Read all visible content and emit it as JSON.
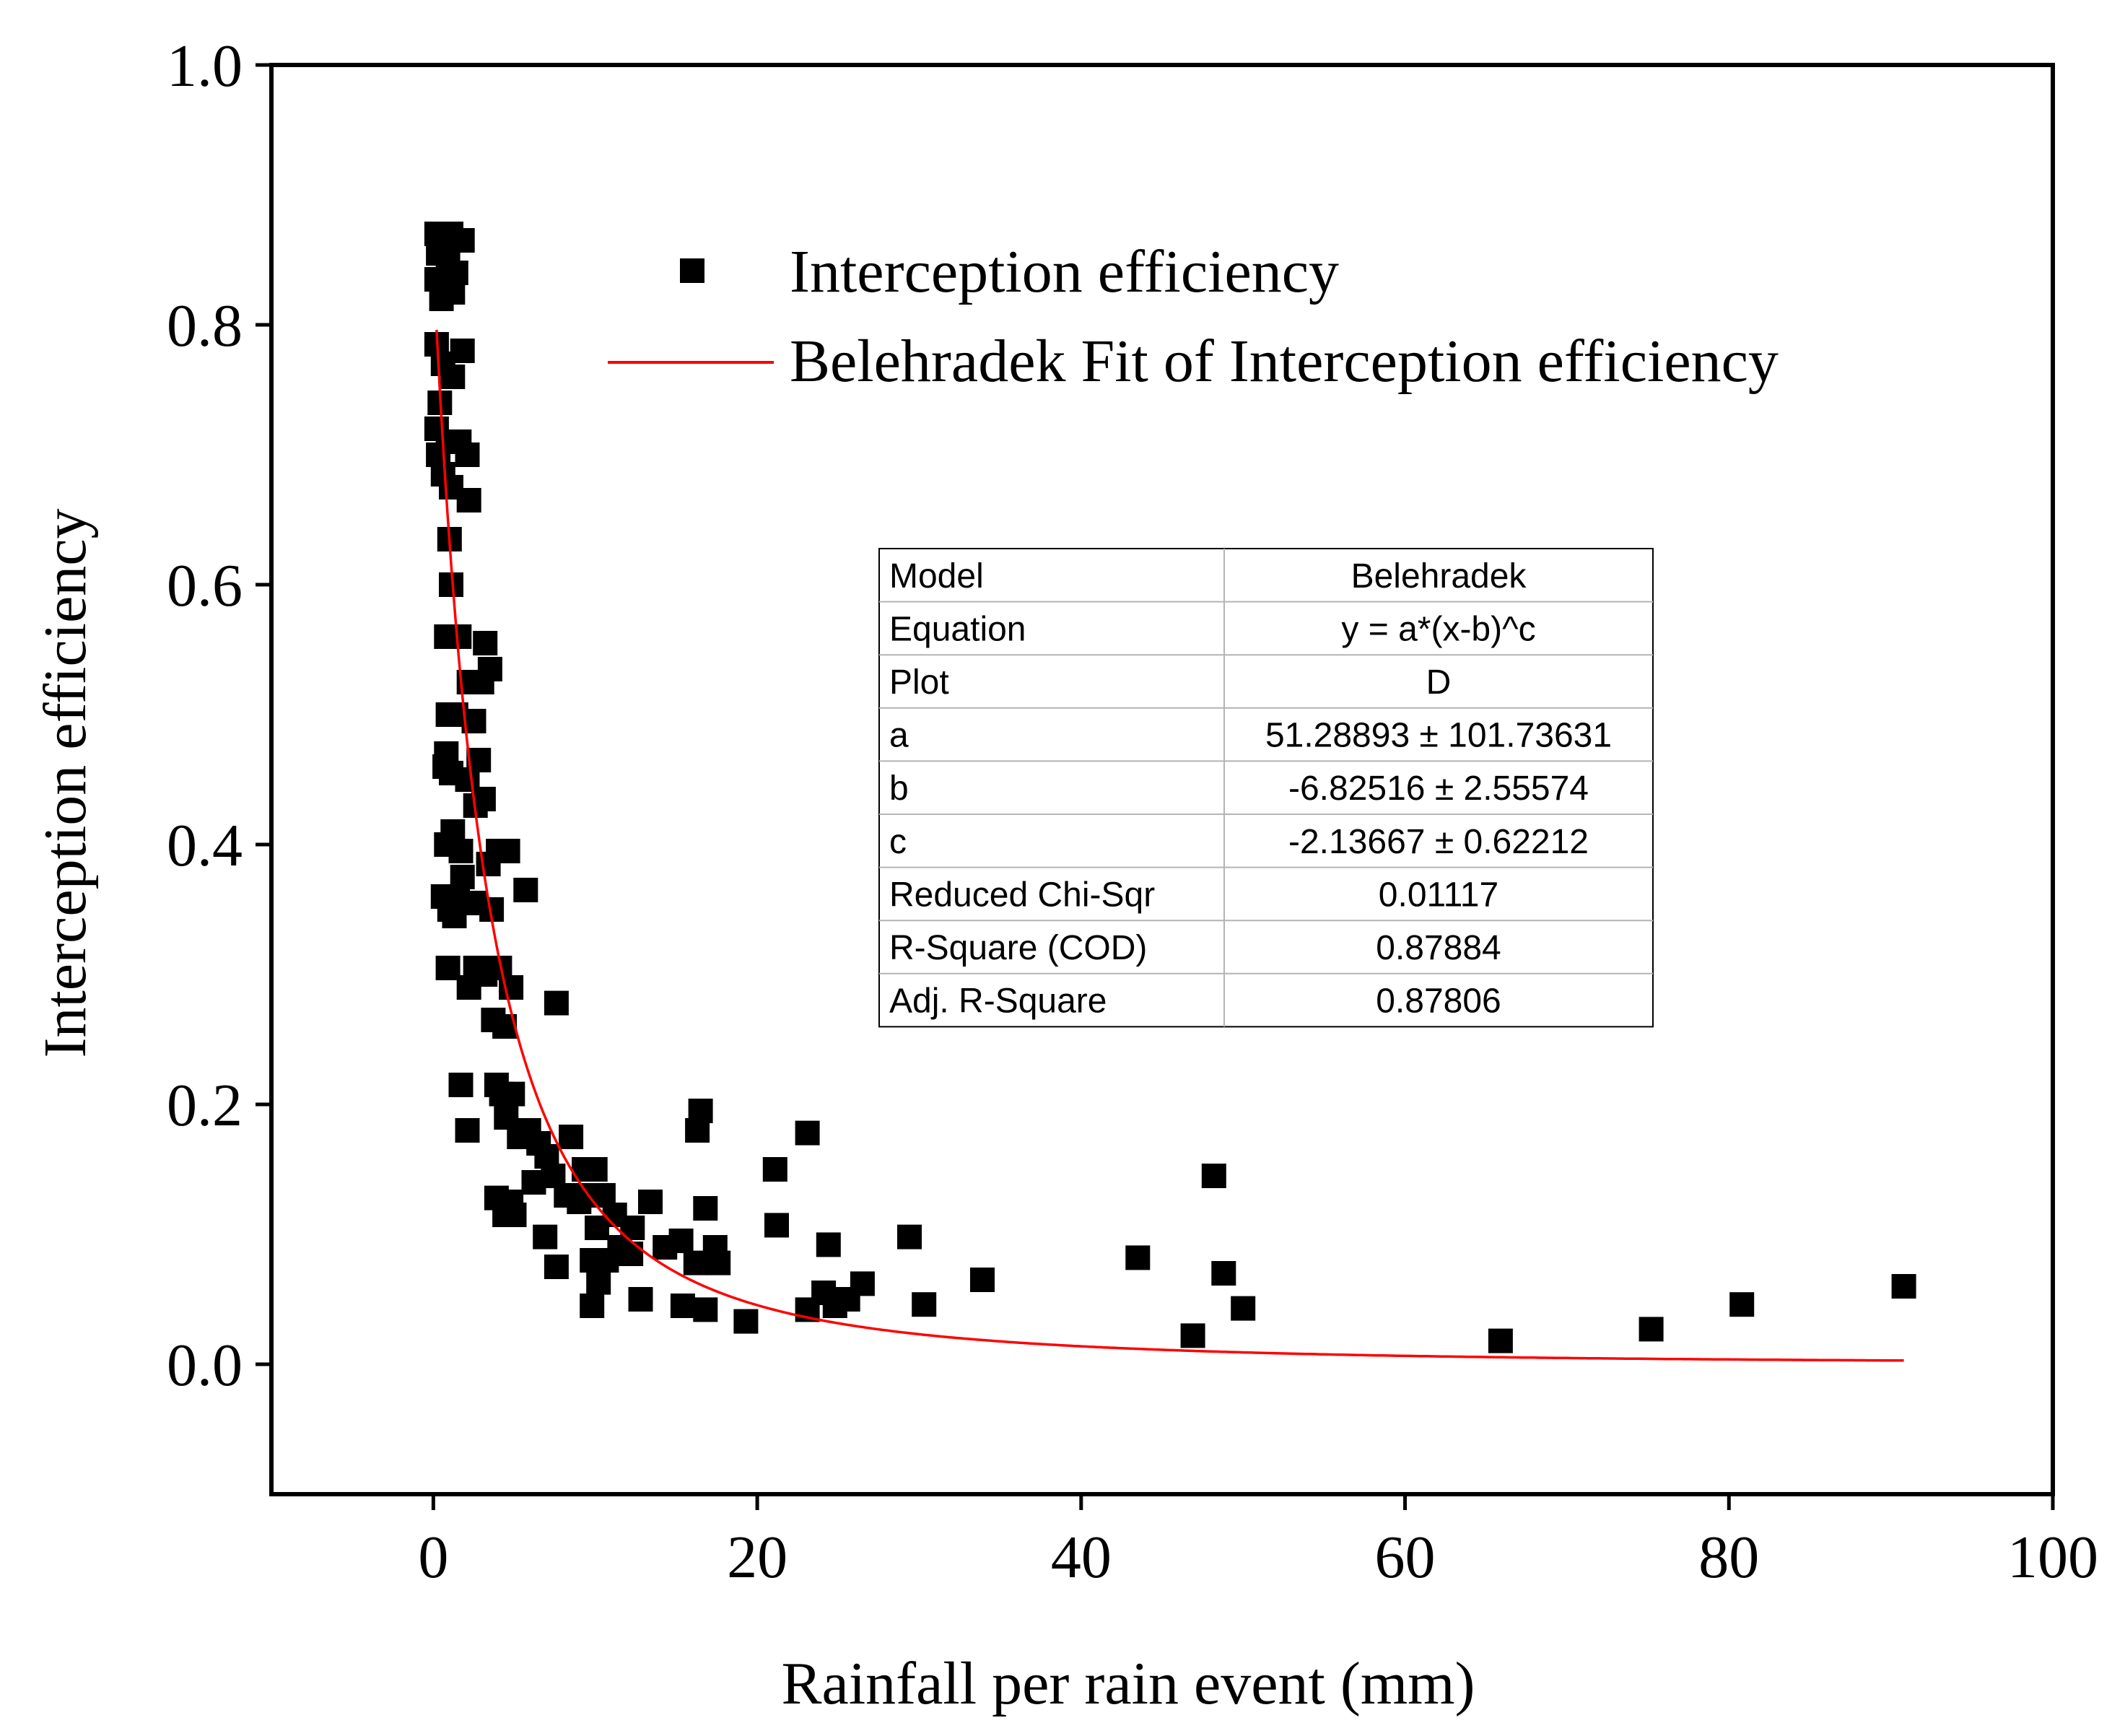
{
  "chart_data": {
    "type": "scatter",
    "xlabel": "Rainfall per rain event (mm)",
    "ylabel": "Interception efficiency",
    "xlim": [
      -10,
      100
    ],
    "ylim": [
      -0.1,
      1.0
    ],
    "xticks": [
      "0",
      "20",
      "40",
      "60",
      "80",
      "100"
    ],
    "yticks": [
      "0.0",
      "0.2",
      "0.4",
      "0.6",
      "0.8",
      "1.0"
    ],
    "legend": {
      "position": "top-right",
      "scatter_label": "Interception efficiency",
      "fit_label": "Belehradek Fit of Interception efficiency"
    },
    "colors": {
      "points": "#000000",
      "fit": "#ff0000"
    },
    "fit": {
      "model": "Belehradek",
      "a": 51.28893,
      "b": -6.82516,
      "c": -2.13667,
      "x_range": [
        0.2,
        90.8
      ]
    },
    "stats_table": {
      "rows": [
        [
          "Model",
          "Belehradek"
        ],
        [
          "Equation",
          "y = a*(x-b)^c"
        ],
        [
          "Plot",
          "D"
        ],
        [
          "a",
          "51.28893 ± 101.73631"
        ],
        [
          "b",
          "-6.82516 ± 2.55574"
        ],
        [
          "c",
          "-2.13667 ± 0.62212"
        ],
        [
          "Reduced Chi-Sqr",
          "0.01117"
        ],
        [
          "R-Square (COD)",
          "0.87884"
        ],
        [
          "Adj. R-Square",
          "0.87806"
        ]
      ]
    },
    "series": [
      {
        "name": "Interception efficiency",
        "points": [
          [
            0.2,
            0.87
          ],
          [
            0.6,
            0.87
          ],
          [
            1.1,
            0.87
          ],
          [
            1.8,
            0.865
          ],
          [
            0.3,
            0.855
          ],
          [
            0.9,
            0.85
          ],
          [
            1.4,
            0.84
          ],
          [
            0.2,
            0.835
          ],
          [
            0.7,
            0.83
          ],
          [
            1.2,
            0.825
          ],
          [
            0.5,
            0.82
          ],
          [
            0.2,
            0.785
          ],
          [
            1.8,
            0.78
          ],
          [
            0.6,
            0.77
          ],
          [
            1.2,
            0.76
          ],
          [
            0.4,
            0.74
          ],
          [
            0.2,
            0.72
          ],
          [
            0.9,
            0.71
          ],
          [
            1.6,
            0.71
          ],
          [
            2.1,
            0.7
          ],
          [
            0.3,
            0.7
          ],
          [
            0.6,
            0.685
          ],
          [
            1.1,
            0.675
          ],
          [
            2.2,
            0.665
          ],
          [
            1.0,
            0.635
          ],
          [
            1.1,
            0.6
          ],
          [
            0.8,
            0.56
          ],
          [
            1.6,
            0.56
          ],
          [
            3.2,
            0.555
          ],
          [
            3.5,
            0.535
          ],
          [
            3.0,
            0.525
          ],
          [
            2.2,
            0.525
          ],
          [
            0.9,
            0.5
          ],
          [
            1.4,
            0.5
          ],
          [
            2.5,
            0.495
          ],
          [
            0.8,
            0.47
          ],
          [
            2.8,
            0.465
          ],
          [
            1.1,
            0.455
          ],
          [
            0.7,
            0.46
          ],
          [
            2.1,
            0.45
          ],
          [
            3.1,
            0.435
          ],
          [
            2.6,
            0.43
          ],
          [
            1.2,
            0.41
          ],
          [
            0.8,
            0.4
          ],
          [
            1.7,
            0.395
          ],
          [
            4.0,
            0.395
          ],
          [
            4.6,
            0.395
          ],
          [
            3.4,
            0.385
          ],
          [
            1.8,
            0.375
          ],
          [
            0.6,
            0.36
          ],
          [
            1.5,
            0.36
          ],
          [
            2.6,
            0.355
          ],
          [
            1.0,
            0.35
          ],
          [
            1.3,
            0.345
          ],
          [
            3.6,
            0.35
          ],
          [
            5.7,
            0.365
          ],
          [
            0.9,
            0.305
          ],
          [
            2.6,
            0.305
          ],
          [
            3.2,
            0.3
          ],
          [
            4.1,
            0.305
          ],
          [
            2.2,
            0.29
          ],
          [
            4.8,
            0.29
          ],
          [
            7.6,
            0.278
          ],
          [
            4.4,
            0.26
          ],
          [
            3.7,
            0.265
          ],
          [
            1.7,
            0.215
          ],
          [
            3.9,
            0.215
          ],
          [
            4.2,
            0.208
          ],
          [
            4.9,
            0.208
          ],
          [
            4.5,
            0.19
          ],
          [
            2.1,
            0.18
          ],
          [
            5.3,
            0.175
          ],
          [
            5.9,
            0.18
          ],
          [
            6.5,
            0.17
          ],
          [
            7.0,
            0.16
          ],
          [
            8.5,
            0.175
          ],
          [
            9.3,
            0.15
          ],
          [
            10.0,
            0.15
          ],
          [
            6.2,
            0.14
          ],
          [
            7.4,
            0.145
          ],
          [
            8.2,
            0.13
          ],
          [
            9.0,
            0.125
          ],
          [
            9.6,
            0.13
          ],
          [
            10.5,
            0.13
          ],
          [
            3.9,
            0.128
          ],
          [
            4.4,
            0.115
          ],
          [
            5.0,
            0.115
          ],
          [
            4.8,
            0.125
          ],
          [
            11.2,
            0.115
          ],
          [
            12.3,
            0.105
          ],
          [
            10.1,
            0.105
          ],
          [
            13.4,
            0.125
          ],
          [
            11.5,
            0.09
          ],
          [
            12.2,
            0.085
          ],
          [
            10.7,
            0.08
          ],
          [
            6.9,
            0.098
          ],
          [
            7.6,
            0.075
          ],
          [
            9.8,
            0.08
          ],
          [
            10.2,
            0.063
          ],
          [
            9.8,
            0.045
          ],
          [
            12.8,
            0.05
          ],
          [
            15.3,
            0.095
          ],
          [
            14.3,
            0.09
          ],
          [
            16.3,
            0.18
          ],
          [
            16.5,
            0.195
          ],
          [
            16.8,
            0.12
          ],
          [
            17.4,
            0.09
          ],
          [
            16.2,
            0.078
          ],
          [
            17.6,
            0.078
          ],
          [
            15.4,
            0.045
          ],
          [
            16.8,
            0.042
          ],
          [
            19.3,
            0.033
          ],
          [
            21.1,
            0.15
          ],
          [
            21.2,
            0.107
          ],
          [
            23.1,
            0.178
          ],
          [
            23.1,
            0.042
          ],
          [
            24.1,
            0.055
          ],
          [
            24.4,
            0.092
          ],
          [
            24.8,
            0.045
          ],
          [
            25.6,
            0.05
          ],
          [
            26.5,
            0.062
          ],
          [
            29.4,
            0.098
          ],
          [
            30.3,
            0.046
          ],
          [
            33.9,
            0.065
          ],
          [
            43.5,
            0.082
          ],
          [
            46.9,
            0.022
          ],
          [
            48.2,
            0.145
          ],
          [
            48.8,
            0.07
          ],
          [
            50.0,
            0.043
          ],
          [
            65.9,
            0.018
          ],
          [
            75.2,
            0.027
          ],
          [
            80.8,
            0.046
          ],
          [
            90.8,
            0.06
          ]
        ]
      }
    ]
  }
}
